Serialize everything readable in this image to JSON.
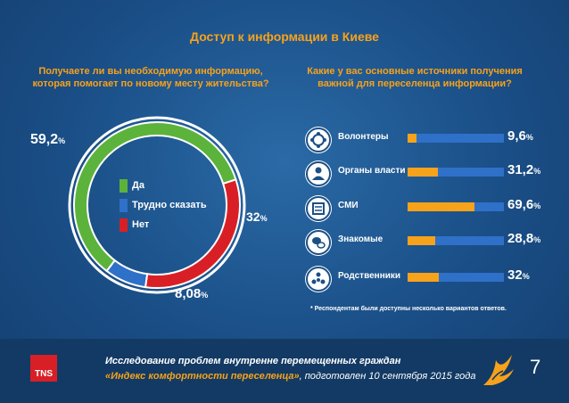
{
  "title": "Доступ к информации в Киеве",
  "left_question": "Получаете ли вы необходимую информацию, которая помогает по новому месту жительства?",
  "right_question": "Какие у вас основные источники получения важной для переселенца информации?",
  "note": "* Респондентам были доступны несколько вариантов ответов.",
  "footer": {
    "logo": "TNS",
    "line1": "Исследование проблем внутренне перемещенных граждан",
    "line2_highlight": "«Индекс комфортности переселенца»",
    "line2_rest": ", подготовлен 10 сентября 2015 года",
    "page_number": "7"
  },
  "chart_data": [
    {
      "type": "pie",
      "title": "Получаете ли вы необходимую информацию, которая помогает по новому месту жительства?",
      "series": [
        {
          "name": "Да",
          "value": 59.2,
          "label": "59,2",
          "color": "#5cb33b"
        },
        {
          "name": "Трудно сказать",
          "value": 8.08,
          "label": "8,08",
          "color": "#2f70c8"
        },
        {
          "name": "Нет",
          "value": 32,
          "label": "32",
          "color": "#d91f26"
        }
      ],
      "unit": "%"
    },
    {
      "type": "bar",
      "title": "Какие у вас основные источники получения важной для переселенца информации?",
      "categories": [
        "Волонтеры",
        "Органы власти",
        "СМИ",
        "Знакомые",
        "Родственники"
      ],
      "values": [
        9.6,
        31.2,
        69.6,
        28.8,
        32
      ],
      "value_labels": [
        "9,6",
        "31,2",
        "69,6",
        "28,8",
        "32"
      ],
      "icons": [
        "volunteers-icon",
        "government-icon",
        "media-icon",
        "acquaintances-icon",
        "relatives-icon"
      ],
      "unit": "%",
      "ylim": [
        0,
        100
      ],
      "colors": {
        "fill": "#f7a21b",
        "track": "#2f70c8"
      }
    }
  ]
}
